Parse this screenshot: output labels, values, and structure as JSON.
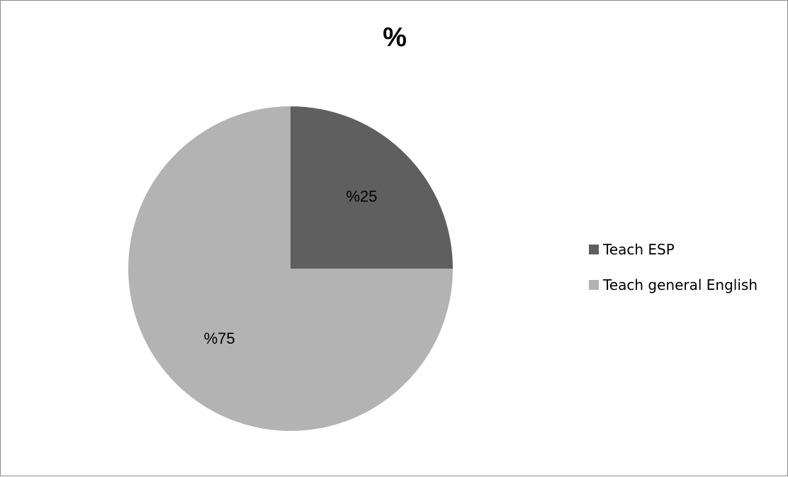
{
  "chart_data": {
    "type": "pie",
    "title": "%",
    "categories": [
      "Teach ESP",
      "Teach general English"
    ],
    "values": [
      25,
      75
    ],
    "data_labels": [
      "%25",
      "%75"
    ],
    "colors": [
      "#5f5f5f",
      "#b3b3b3"
    ],
    "legend_position": "right"
  }
}
